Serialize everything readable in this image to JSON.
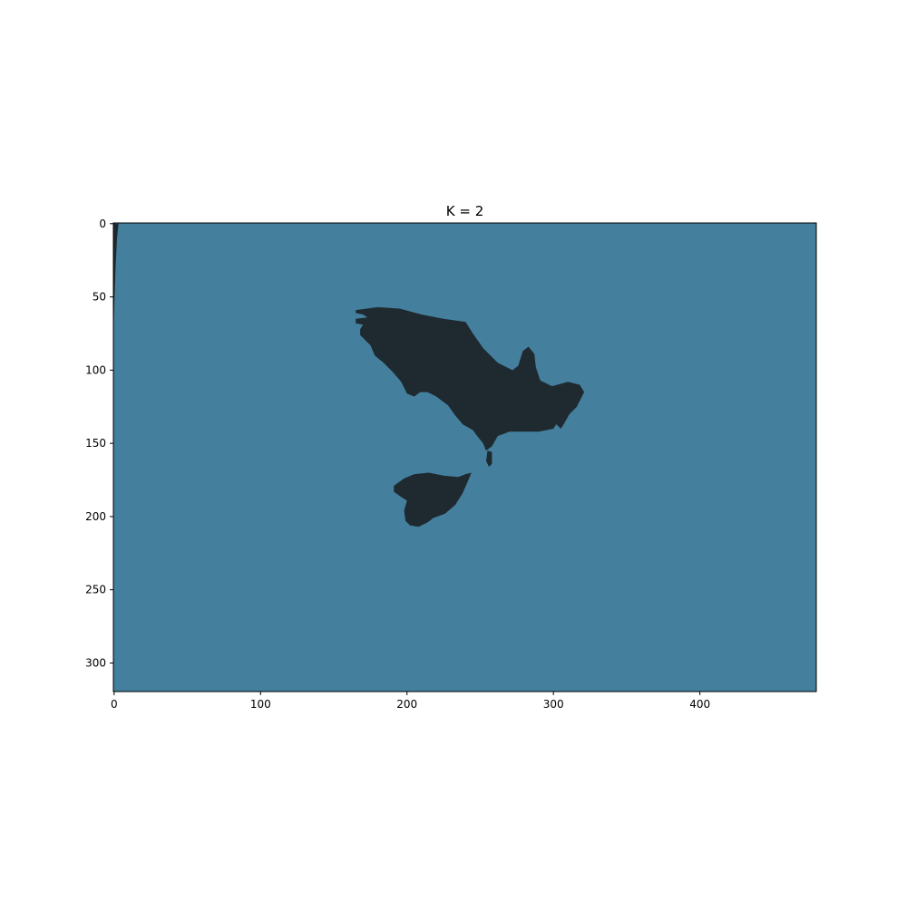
{
  "chart_data": {
    "type": "heatmap",
    "title": "K = 2",
    "xlabel": "",
    "ylabel": "",
    "image_width": 480,
    "image_height": 320,
    "xlim": [
      -0.5,
      479.5
    ],
    "ylim": [
      319.5,
      -0.5
    ],
    "x_ticks": [
      0,
      100,
      200,
      300,
      400
    ],
    "x_tick_labels": [
      "0",
      "100",
      "200",
      "300",
      "400"
    ],
    "y_ticks": [
      0,
      50,
      100,
      150,
      200,
      250,
      300
    ],
    "y_tick_labels": [
      "0",
      "50",
      "100",
      "150",
      "200",
      "250",
      "300"
    ],
    "grid": false,
    "clusters": [
      {
        "label": "background",
        "color": "#44809e"
      },
      {
        "label": "foreground",
        "color": "#1f2a30"
      }
    ],
    "foreground_regions": [
      {
        "name": "bird-body",
        "outline": [
          [
            165,
            59
          ],
          [
            180,
            57
          ],
          [
            195,
            58
          ],
          [
            210,
            62
          ],
          [
            225,
            65
          ],
          [
            240,
            67
          ],
          [
            245,
            75
          ],
          [
            252,
            85
          ],
          [
            262,
            95
          ],
          [
            272,
            100
          ],
          [
            276,
            97
          ],
          [
            279,
            87
          ],
          [
            283,
            84
          ],
          [
            287,
            89
          ],
          [
            288,
            98
          ],
          [
            291,
            107
          ],
          [
            299,
            111
          ],
          [
            310,
            108
          ],
          [
            318,
            110
          ],
          [
            321,
            115
          ],
          [
            318,
            121
          ],
          [
            316,
            125
          ],
          [
            311,
            130
          ],
          [
            307,
            137
          ],
          [
            305,
            140
          ],
          [
            302,
            137
          ],
          [
            300,
            140
          ],
          [
            290,
            142
          ],
          [
            280,
            142
          ],
          [
            270,
            142
          ],
          [
            262,
            145
          ],
          [
            258,
            152
          ],
          [
            254,
            155
          ],
          [
            252,
            150
          ],
          [
            248,
            145
          ],
          [
            245,
            141
          ],
          [
            238,
            137
          ],
          [
            233,
            131
          ],
          [
            228,
            124
          ],
          [
            220,
            118
          ],
          [
            214,
            115
          ],
          [
            209,
            115
          ],
          [
            205,
            118
          ],
          [
            200,
            116
          ],
          [
            196,
            108
          ],
          [
            190,
            101
          ],
          [
            184,
            95
          ],
          [
            178,
            90
          ],
          [
            175,
            83
          ],
          [
            172,
            80
          ],
          [
            168,
            76
          ],
          [
            168,
            72
          ],
          [
            170,
            69
          ],
          [
            165,
            68
          ],
          [
            165,
            65
          ],
          [
            173,
            64
          ],
          [
            170,
            62
          ],
          [
            165,
            61
          ]
        ]
      },
      {
        "name": "bird-tail-fragment",
        "outline": [
          [
            255,
            155
          ],
          [
            258,
            156
          ],
          [
            258,
            164
          ],
          [
            256,
            166
          ],
          [
            254,
            162
          ]
        ]
      },
      {
        "name": "bird-lower-blob",
        "outline": [
          [
            191,
            179
          ],
          [
            198,
            174
          ],
          [
            205,
            171
          ],
          [
            215,
            170
          ],
          [
            225,
            172
          ],
          [
            235,
            173
          ],
          [
            240,
            171
          ],
          [
            244,
            170
          ],
          [
            242,
            175
          ],
          [
            238,
            184
          ],
          [
            233,
            192
          ],
          [
            226,
            198
          ],
          [
            218,
            201
          ],
          [
            214,
            204
          ],
          [
            208,
            207
          ],
          [
            202,
            206
          ],
          [
            199,
            203
          ],
          [
            198,
            196
          ],
          [
            200,
            189
          ],
          [
            195,
            186
          ],
          [
            191,
            183
          ]
        ]
      },
      {
        "name": "left-edge-strip",
        "outline": [
          [
            0,
            0
          ],
          [
            3,
            0
          ],
          [
            2,
            10
          ],
          [
            1,
            30
          ],
          [
            0,
            60
          ],
          [
            -0.5,
            80
          ],
          [
            -0.5,
            0
          ]
        ]
      }
    ]
  }
}
